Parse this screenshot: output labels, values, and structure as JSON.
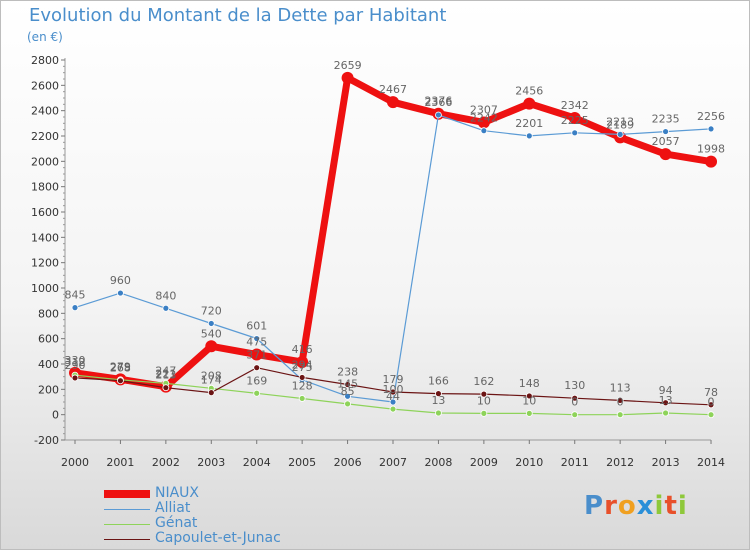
{
  "header": {
    "title": "Evolution du Montant de la Dette par Habitant",
    "subtitle": "(en €)"
  },
  "colors": {
    "title": "#4a8ecb",
    "NIAUX": "#ee1111",
    "Alliat": "#5b9bd5",
    "Génat": "#8ed35a",
    "Capoulet-et-Junac": "#6b1414"
  },
  "logo": {
    "letters": [
      "P",
      "r",
      "o",
      "x",
      "i",
      "t",
      "i"
    ],
    "colors": [
      "#4a8ecb",
      "#e8502a",
      "#f0a020",
      "#2a8fd8",
      "#8ec83a",
      "#e8502a",
      "#8ec83a"
    ]
  },
  "chart_data": {
    "type": "line",
    "title": "Evolution du Montant de la Dette par Habitant",
    "ylabel": "(en €)",
    "x": [
      "2000",
      "2001",
      "2002",
      "2003",
      "2004",
      "2005",
      "2006",
      "2007",
      "2008",
      "2009",
      "2010",
      "2011",
      "2012",
      "2013",
      "2014"
    ],
    "ylim": [
      -200,
      2800
    ],
    "yticks": [
      -200,
      0,
      200,
      400,
      600,
      800,
      1000,
      1200,
      1400,
      1600,
      1800,
      2000,
      2200,
      2400,
      2600,
      2800
    ],
    "grid": false,
    "legend": "bottom-left",
    "series": [
      {
        "name": "NIAUX",
        "values": [
          330,
          279,
          221,
          540,
          475,
          416,
          2659,
          2467,
          2376,
          2307,
          2456,
          2342,
          2189,
          2057,
          1998
        ],
        "labels": [
          "330",
          "279",
          "221",
          "540",
          "475",
          "416",
          "2659",
          "2467",
          "2376",
          "2307",
          "2456",
          "2342",
          "2189",
          "2057",
          "1998"
        ]
      },
      {
        "name": "Alliat",
        "values": [
          845,
          960,
          840,
          720,
          601,
          275,
          145,
          100,
          2366,
          2242,
          2201,
          2225,
          2213,
          2235,
          2256
        ],
        "labels": [
          "845",
          "960",
          "840",
          "720",
          "601",
          "275",
          "145",
          "100",
          "2366",
          "2242",
          "2201",
          "2225",
          "2213",
          "2235",
          "2256"
        ]
      },
      {
        "name": "Génat",
        "values": [
          312,
          275,
          247,
          208,
          169,
          128,
          85,
          44,
          13,
          10,
          10,
          0,
          0,
          13,
          0
        ],
        "labels": [
          "312",
          "275",
          "247",
          "208",
          "169",
          "128",
          "85",
          "44",
          "13",
          "10",
          "10",
          "0",
          "0",
          "13",
          "0"
        ]
      },
      {
        "name": "Capoulet-et-Junac",
        "values": [
          290,
          268,
          213,
          174,
          371,
          294,
          238,
          179,
          166,
          162,
          148,
          130,
          113,
          94,
          78
        ],
        "labels": [
          "290",
          "268",
          "213",
          "174",
          "371",
          "294",
          "238",
          "179",
          "166",
          "162",
          "148",
          "130",
          "113",
          "94",
          "78"
        ]
      }
    ]
  }
}
